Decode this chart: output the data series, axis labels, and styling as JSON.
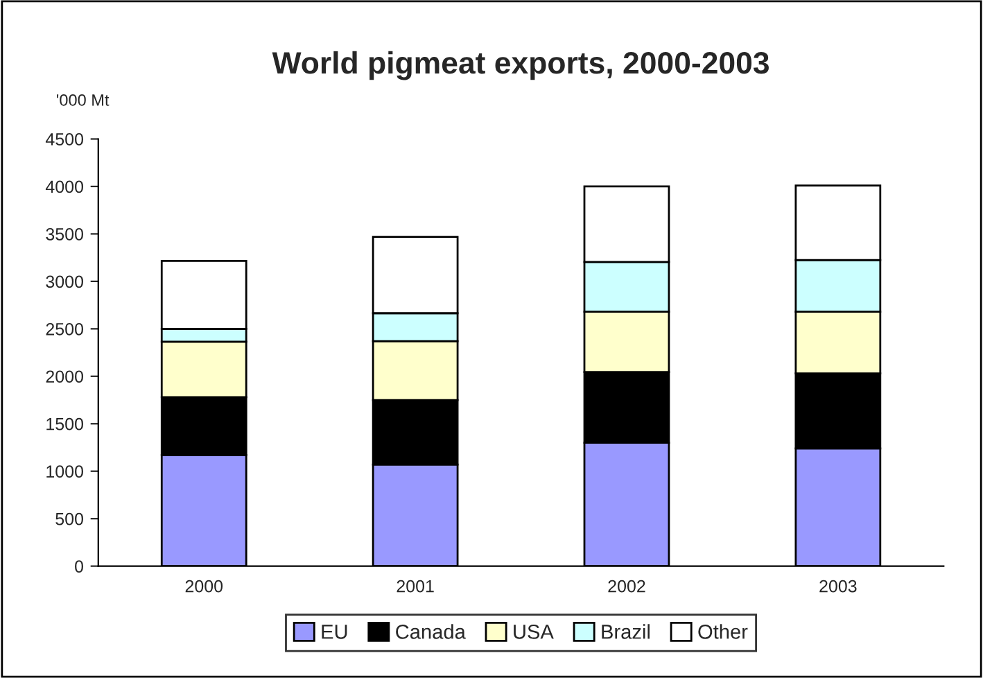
{
  "chart_data": {
    "type": "bar",
    "title": "World pigmeat exports, 2000-2003",
    "ylabel": "'000 Mt",
    "stacked": true,
    "categories": [
      "2000",
      "2001",
      "2002",
      "2003"
    ],
    "series": [
      {
        "name": "EU",
        "color": "#9999ff",
        "values": [
          1170,
          1070,
          1300,
          1240
        ]
      },
      {
        "name": "Canada",
        "color": "#000000",
        "values": [
          610,
          680,
          745,
          790
        ]
      },
      {
        "name": "USA",
        "color": "#ffffcc",
        "values": [
          585,
          620,
          635,
          650
        ]
      },
      {
        "name": "Brazil",
        "color": "#ccffff",
        "values": [
          135,
          295,
          525,
          545
        ]
      },
      {
        "name": "Other",
        "color": "#ffffff",
        "values": [
          715,
          805,
          795,
          785
        ]
      }
    ],
    "ylim": [
      0,
      4500
    ],
    "yticks": [
      0,
      500,
      1000,
      1500,
      2000,
      2500,
      3000,
      3500,
      4000,
      4500
    ],
    "grid": false,
    "legend": "bottom"
  }
}
